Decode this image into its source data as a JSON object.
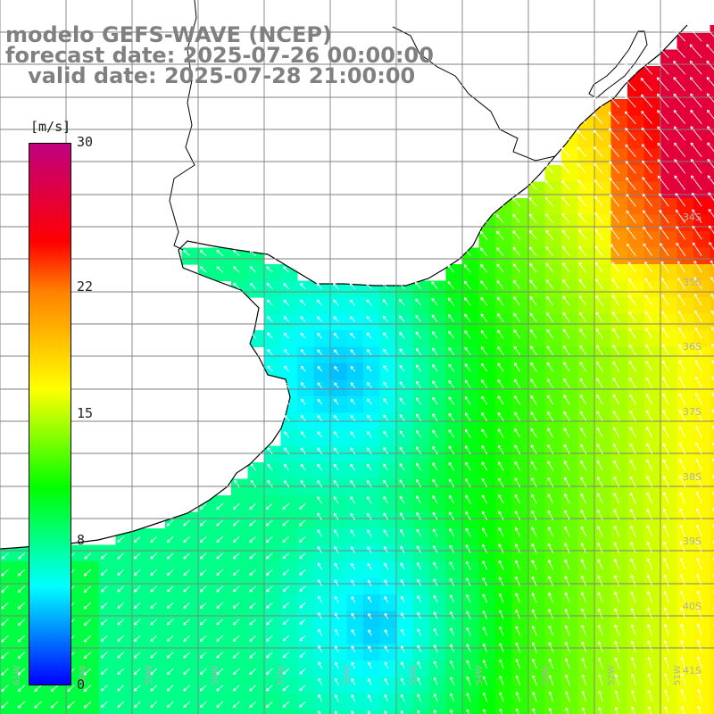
{
  "titles": {
    "line1": "modelo GEFS-WAVE (NCEP)",
    "line2": "forecast date: 2025-07-26 00:00:00",
    "line3": "   valid date: 2025-07-28 21:00:00"
  },
  "colorbar": {
    "unit": "[m/s]",
    "ticks": [
      "30",
      "22",
      "15",
      "8",
      "0"
    ],
    "tick_values": [
      30,
      22,
      15,
      8,
      0
    ],
    "range": [
      0,
      30
    ],
    "colors": [
      "#0000ff",
      "#0080ff",
      "#00ffff",
      "#00ff80",
      "#00ff00",
      "#80ff00",
      "#ffff00",
      "#ffc000",
      "#ff8000",
      "#ff0000",
      "#e00040",
      "#c00080"
    ]
  },
  "map": {
    "field": "wind speed",
    "units": "m/s",
    "lat_labels": [
      "34S",
      "35S",
      "36S",
      "37S",
      "38S",
      "39S",
      "40S",
      "41S"
    ],
    "lon_labels": [
      "61W",
      "60W",
      "59W",
      "58W",
      "57W",
      "56W",
      "55W",
      "54W",
      "53W",
      "52W",
      "51W"
    ],
    "land_color": "#ffffff",
    "grid_color": "#808080",
    "coast_color": "#000000"
  }
}
